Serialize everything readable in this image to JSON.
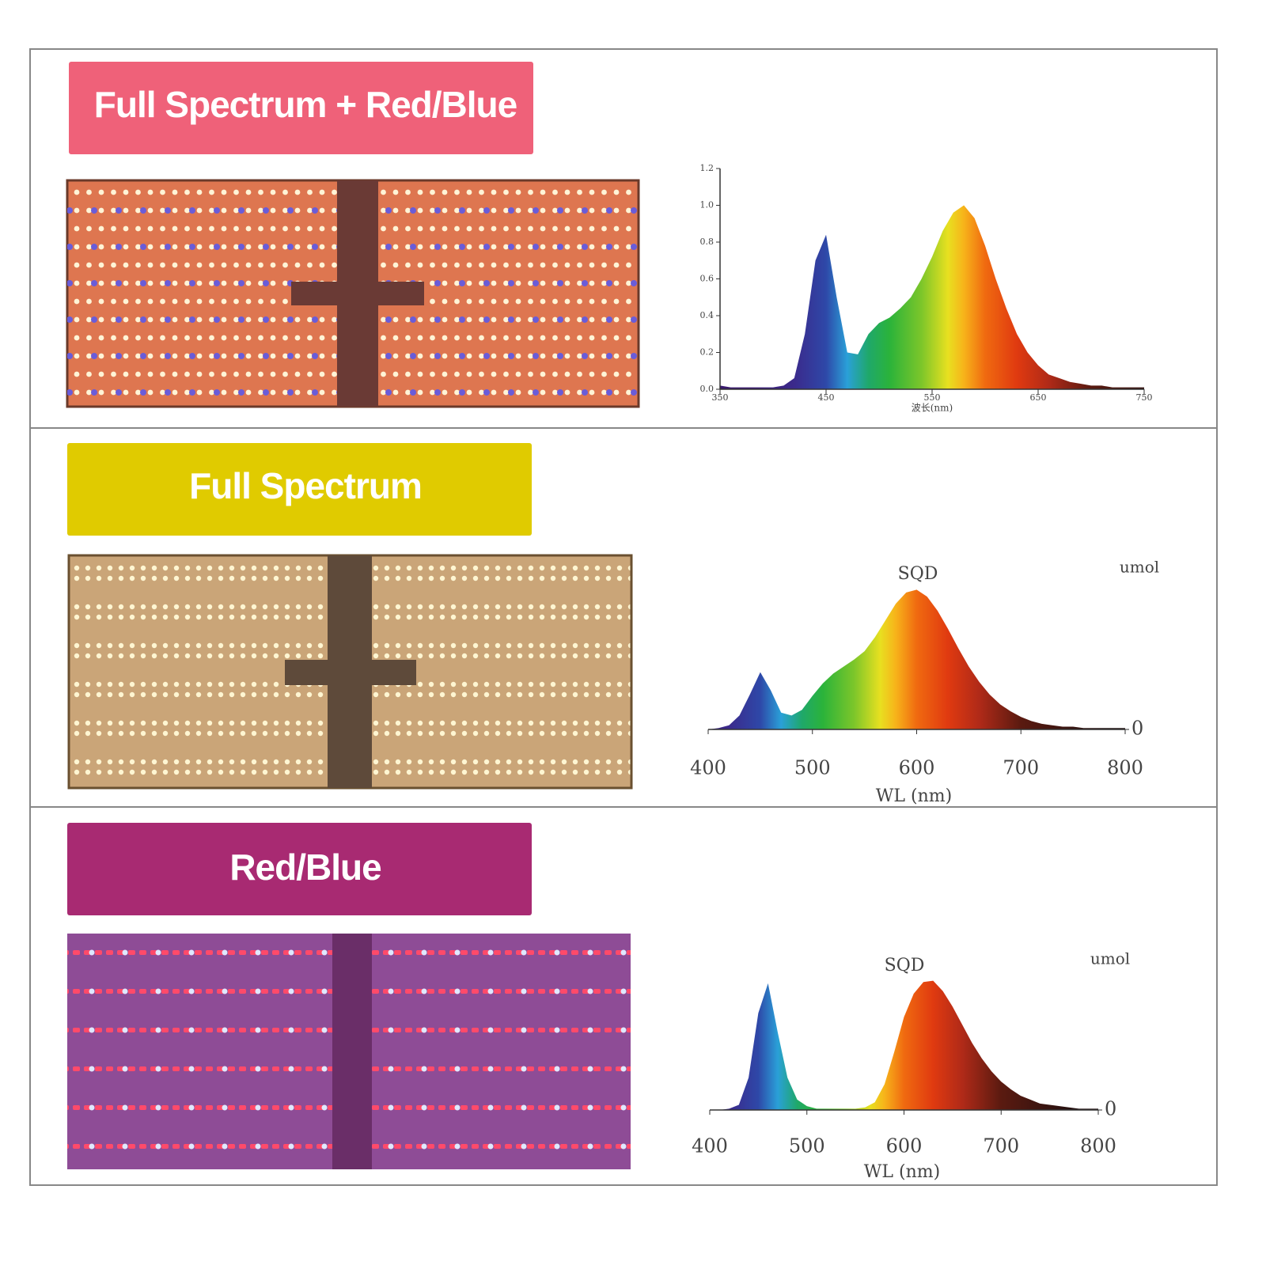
{
  "panels": [
    {
      "label": "Full Spectrum + Red/Blue"
    },
    {
      "label": "Full Spectrum"
    },
    {
      "label": "Red/Blue"
    }
  ],
  "chart_data": [
    {
      "type": "area",
      "xlabel": "波长(nm)",
      "x": [
        350,
        360,
        370,
        380,
        390,
        400,
        410,
        420,
        430,
        440,
        450,
        460,
        470,
        480,
        490,
        500,
        510,
        520,
        530,
        540,
        550,
        560,
        570,
        580,
        590,
        600,
        610,
        620,
        630,
        640,
        650,
        660,
        670,
        680,
        690,
        700,
        710,
        720,
        730,
        740,
        750
      ],
      "values": [
        0.02,
        0.01,
        0.01,
        0.01,
        0.01,
        0.01,
        0.02,
        0.06,
        0.3,
        0.7,
        0.84,
        0.5,
        0.2,
        0.19,
        0.3,
        0.36,
        0.39,
        0.44,
        0.5,
        0.6,
        0.72,
        0.86,
        0.96,
        1.0,
        0.93,
        0.78,
        0.6,
        0.44,
        0.3,
        0.2,
        0.13,
        0.08,
        0.06,
        0.04,
        0.03,
        0.02,
        0.02,
        0.01,
        0.01,
        0.01,
        0.01
      ],
      "xlim": [
        350,
        750
      ],
      "xticks": [
        350,
        450,
        550,
        650,
        750
      ],
      "ylim": [
        0,
        1.2
      ],
      "yticks": [
        {
          "value": 0,
          "label": "0.0"
        },
        0.2,
        0.4,
        0.6,
        0.8,
        {
          "value": 1,
          "label": "1.0"
        },
        1.2
      ]
    },
    {
      "type": "area",
      "title": "SQD",
      "xlabel": "WL (nm)",
      "ylabel": "umol",
      "x": [
        400,
        410,
        420,
        430,
        440,
        450,
        460,
        470,
        480,
        490,
        500,
        510,
        520,
        530,
        540,
        550,
        560,
        570,
        580,
        590,
        600,
        610,
        620,
        630,
        640,
        650,
        660,
        670,
        680,
        690,
        700,
        710,
        720,
        730,
        740,
        750,
        760,
        770,
        780,
        790,
        800
      ],
      "values": [
        0,
        0.01,
        0.03,
        0.1,
        0.25,
        0.41,
        0.28,
        0.12,
        0.1,
        0.14,
        0.24,
        0.33,
        0.4,
        0.45,
        0.5,
        0.56,
        0.66,
        0.78,
        0.9,
        0.98,
        1.0,
        0.95,
        0.85,
        0.72,
        0.58,
        0.45,
        0.34,
        0.25,
        0.18,
        0.13,
        0.09,
        0.06,
        0.04,
        0.03,
        0.02,
        0.02,
        0.01,
        0.01,
        0.01,
        0.01,
        0.01
      ],
      "xlim": [
        400,
        800
      ],
      "xticks": [
        400,
        500,
        600,
        700,
        800
      ],
      "ylim": [
        0,
        1.2
      ],
      "yticks": [
        0
      ]
    },
    {
      "type": "area",
      "title": "SQD",
      "xlabel": "WL (nm)",
      "ylabel": "umol",
      "x": [
        400,
        410,
        420,
        430,
        440,
        450,
        460,
        470,
        480,
        490,
        500,
        510,
        520,
        530,
        540,
        550,
        560,
        570,
        580,
        590,
        600,
        610,
        620,
        630,
        640,
        650,
        660,
        670,
        680,
        690,
        700,
        710,
        720,
        730,
        740,
        750,
        760,
        770,
        780,
        790,
        800
      ],
      "values": [
        0,
        0,
        0.01,
        0.04,
        0.25,
        0.75,
        0.98,
        0.6,
        0.25,
        0.08,
        0.03,
        0.01,
        0.01,
        0.01,
        0.01,
        0.01,
        0.02,
        0.06,
        0.2,
        0.45,
        0.72,
        0.9,
        0.99,
        1.0,
        0.92,
        0.8,
        0.66,
        0.52,
        0.4,
        0.3,
        0.22,
        0.16,
        0.11,
        0.08,
        0.05,
        0.04,
        0.03,
        0.02,
        0.01,
        0.01,
        0.01
      ],
      "xlim": [
        400,
        800
      ],
      "xticks": [
        400,
        500,
        600,
        700,
        800
      ],
      "ylim": [
        0,
        1.2
      ],
      "yticks": [
        0
      ]
    }
  ]
}
